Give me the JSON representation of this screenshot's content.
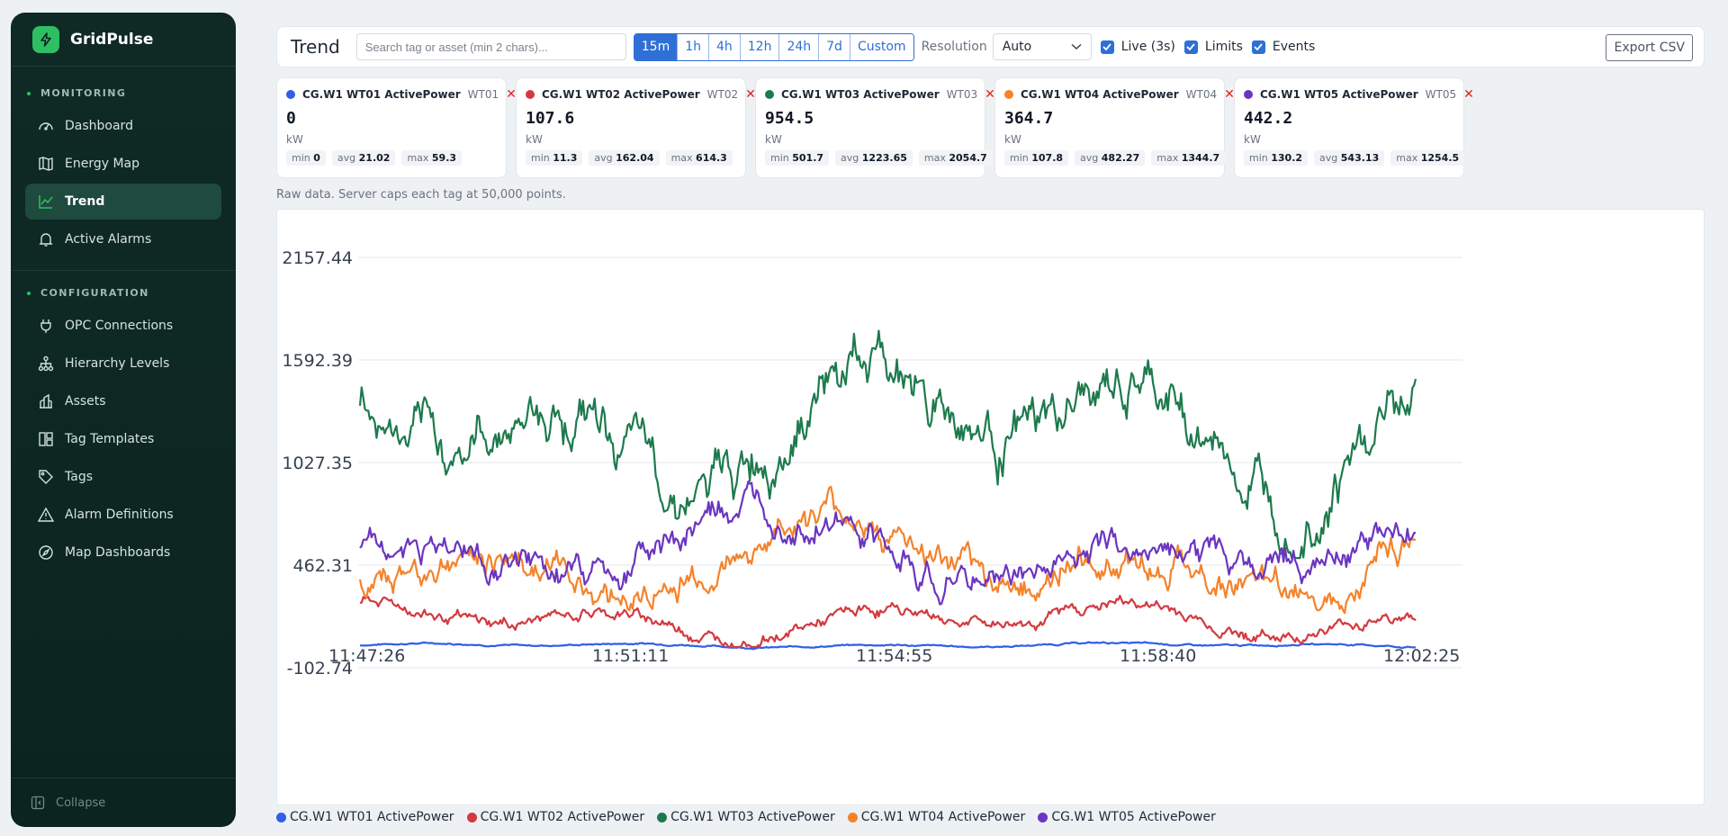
{
  "app": {
    "name": "GridPulse",
    "collapse_label": "Collapse"
  },
  "sidebar": {
    "sections": [
      {
        "title": "MONITORING",
        "items": [
          {
            "label": "Dashboard",
            "icon": "gauge-icon",
            "active": false
          },
          {
            "label": "Energy Map",
            "icon": "map-icon",
            "active": false
          },
          {
            "label": "Trend",
            "icon": "trend-icon",
            "active": true
          },
          {
            "label": "Active Alarms",
            "icon": "bell-icon",
            "active": false
          }
        ]
      },
      {
        "title": "CONFIGURATION",
        "items": [
          {
            "label": "OPC Connections",
            "icon": "plug-icon"
          },
          {
            "label": "Hierarchy Levels",
            "icon": "hierarchy-icon"
          },
          {
            "label": "Assets",
            "icon": "building-icon"
          },
          {
            "label": "Tag Templates",
            "icon": "template-icon"
          },
          {
            "label": "Tags",
            "icon": "tag-icon"
          },
          {
            "label": "Alarm Definitions",
            "icon": "warning-icon"
          },
          {
            "label": "Map Dashboards",
            "icon": "compass-icon"
          }
        ]
      }
    ]
  },
  "toolbar": {
    "title": "Trend",
    "search_placeholder": "Search tag or asset (min 2 chars)...",
    "ranges": [
      "15m",
      "1h",
      "4h",
      "12h",
      "24h",
      "7d",
      "Custom"
    ],
    "active_range": "15m",
    "resolution_label": "Resolution",
    "resolution_value": "Auto",
    "checks": [
      {
        "label": "Live (3s)",
        "checked": true
      },
      {
        "label": "Limits",
        "checked": true
      },
      {
        "label": "Events",
        "checked": true
      }
    ],
    "export_label": "Export CSV"
  },
  "tags": [
    {
      "name": "CG.W1 WT01 ActivePower",
      "code": "WT01",
      "value": "0",
      "unit": "kW",
      "min": "0",
      "avg": "21.02",
      "max": "59.3",
      "color": "#2f5ee8"
    },
    {
      "name": "CG.W1 WT02 ActivePower",
      "code": "WT02",
      "value": "107.6",
      "unit": "kW",
      "min": "11.3",
      "avg": "162.04",
      "max": "614.3",
      "color": "#d33a3f"
    },
    {
      "name": "CG.W1 WT03 ActivePower",
      "code": "WT03",
      "value": "954.5",
      "unit": "kW",
      "min": "501.7",
      "avg": "1223.65",
      "max": "2054.7",
      "color": "#1d7a4c"
    },
    {
      "name": "CG.W1 WT04 ActivePower",
      "code": "WT04",
      "value": "364.7",
      "unit": "kW",
      "min": "107.8",
      "avg": "482.27",
      "max": "1344.7",
      "color": "#f5822a"
    },
    {
      "name": "CG.W1 WT05 ActivePower",
      "code": "WT05",
      "value": "442.2",
      "unit": "kW",
      "min": "130.2",
      "avg": "543.13",
      "max": "1254.5",
      "color": "#6b35c0"
    }
  ],
  "stat_labels": {
    "min": "min",
    "avg": "avg",
    "max": "max"
  },
  "note": "Raw data. Server caps each tag at 50,000 points.",
  "chart_data": {
    "type": "line",
    "y_ticks": [
      "2157.44",
      "1592.39",
      "1027.35",
      "462.31",
      "-102.74"
    ],
    "ylim": [
      -102.74,
      2157.44
    ],
    "x_ticks": [
      "11:47:26",
      "11:51:11",
      "11:54:55",
      "11:58:40",
      "12:02:25"
    ],
    "grid": true,
    "legend_position": "bottom-left",
    "series": [
      {
        "name": "CG.W1 WT01 ActivePower",
        "color": "#2f5ee8",
        "base": 21,
        "amp": 14,
        "noise": 6,
        "min": 0,
        "max": 59.3
      },
      {
        "name": "CG.W1 WT02 ActivePower",
        "color": "#d33a3f",
        "base": 160,
        "amp": 110,
        "noise": 45,
        "min": 11.3,
        "max": 614.3
      },
      {
        "name": "CG.W1 WT03 ActivePower",
        "color": "#1d7a4c",
        "base": 1240,
        "amp": 420,
        "noise": 180,
        "min": 501.7,
        "max": 2054.7
      },
      {
        "name": "CG.W1 WT04 ActivePower",
        "color": "#f5822a",
        "base": 480,
        "amp": 260,
        "noise": 110,
        "min": 107.8,
        "max": 1344.7
      },
      {
        "name": "CG.W1 WT05 ActivePower",
        "color": "#6b35c0",
        "base": 540,
        "amp": 230,
        "noise": 110,
        "min": 130.2,
        "max": 1254.5
      }
    ]
  }
}
